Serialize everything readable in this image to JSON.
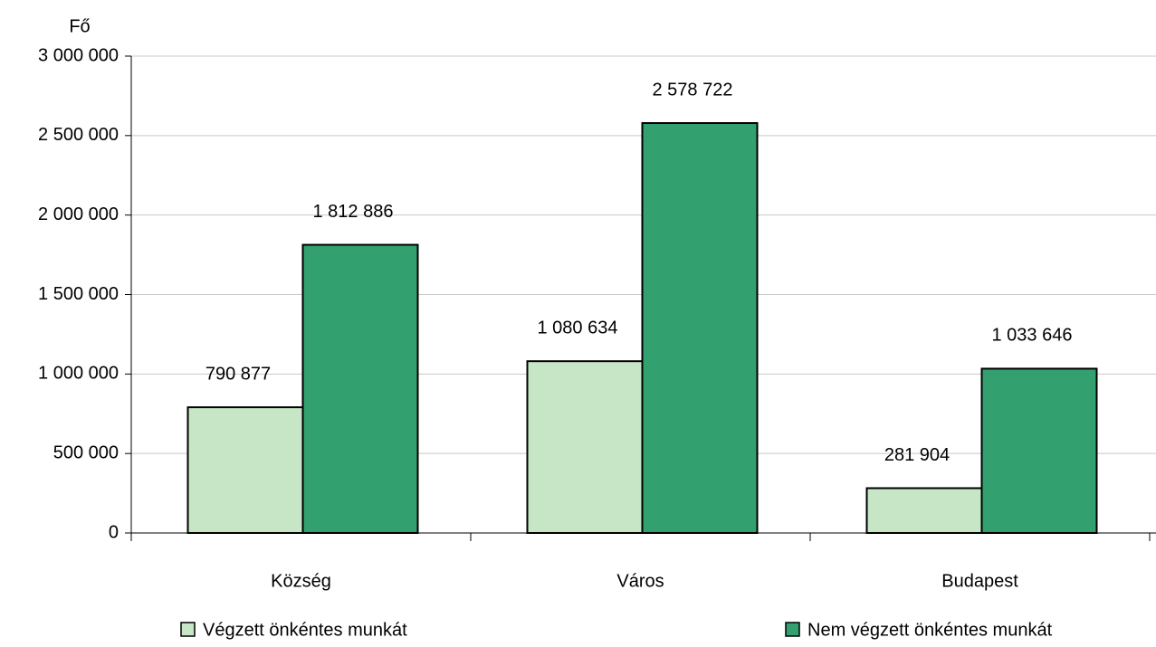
{
  "chart_data": {
    "type": "bar",
    "y_label": "Fő",
    "categories": [
      "Község",
      "Város",
      "Budapest"
    ],
    "series": [
      {
        "name": "Végzett önkéntes munkát",
        "color": "#c6e6c6",
        "values": [
          790877,
          1080634,
          281904
        ],
        "value_labels": [
          "790 877",
          "1 080 634",
          "281 904"
        ]
      },
      {
        "name": "Nem végzett önkéntes munkát",
        "color": "#33a070",
        "values": [
          1812886,
          2578722,
          1033646
        ],
        "value_labels": [
          "1 812 886",
          "2 578 722",
          "1 033 646"
        ]
      }
    ],
    "ylim": [
      0,
      3000000
    ],
    "yticks": [
      0,
      {
        "value": 500000,
        "label": "500 000"
      },
      {
        "value": 1000000,
        "label": "1 000 000"
      },
      {
        "value": 1500000,
        "label": "1 500 000"
      },
      {
        "value": 2000000,
        "label": "2 000 000"
      },
      {
        "value": 2500000,
        "label": "2 500 000"
      },
      {
        "value": 3000000,
        "label": "3 000 000"
      }
    ],
    "grid": true,
    "legend": "bottom"
  }
}
